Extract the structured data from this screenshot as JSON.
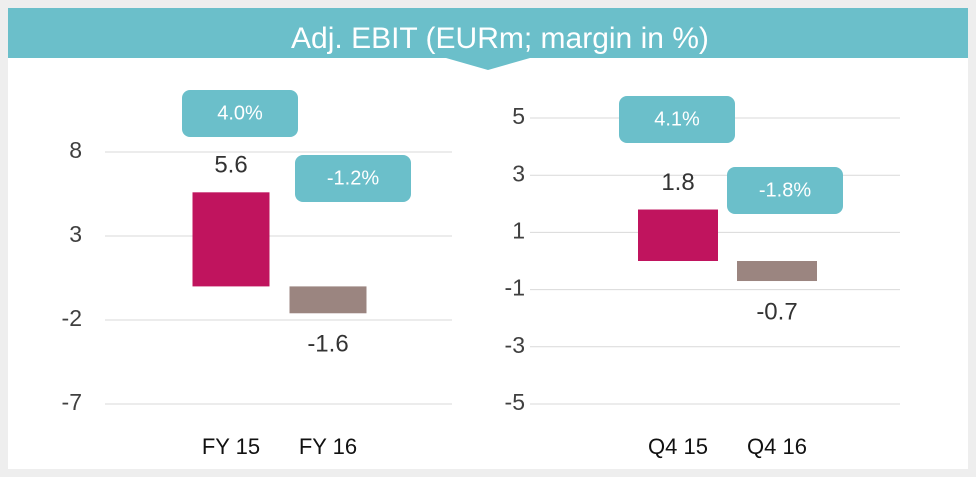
{
  "title": "Adj. EBIT (EURm; margin in %)",
  "chart_data": [
    {
      "type": "bar",
      "categories": [
        "FY 15",
        "FY 16"
      ],
      "values": [
        5.6,
        -1.6
      ],
      "margins": [
        4.0,
        -1.2
      ],
      "margin_labels": [
        "4.0%",
        "-1.2%"
      ],
      "colors": [
        "#c0145e",
        "#9b8580"
      ],
      "margin_color": "#6bbfca",
      "ylim": [
        -7,
        8
      ],
      "yticks": [
        8,
        3,
        -2,
        -7
      ],
      "grid": true
    },
    {
      "type": "bar",
      "categories": [
        "Q4 15",
        "Q4 16"
      ],
      "values": [
        1.8,
        -0.7
      ],
      "margins": [
        4.1,
        -1.8
      ],
      "margin_labels": [
        "4.1%",
        "-1.8%"
      ],
      "colors": [
        "#c0145e",
        "#9b8580"
      ],
      "margin_color": "#6bbfca",
      "ylim": [
        -5,
        5
      ],
      "yticks": [
        5,
        3,
        1,
        -1,
        -3,
        -5
      ],
      "grid": true
    }
  ]
}
